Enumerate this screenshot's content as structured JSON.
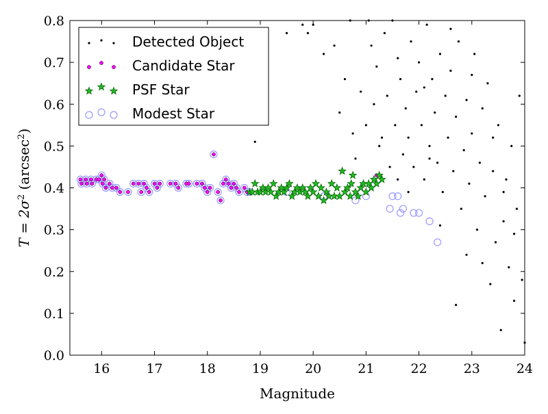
{
  "chart_data": {
    "type": "scatter",
    "xlabel": "Magnitude",
    "ylabel_parts": {
      "base": "T = 2σ",
      "exp": "2",
      "unit_pre": " (arcsec",
      "unit_exp": "2",
      "unit_post": ")"
    },
    "xlim": [
      15.4,
      24
    ],
    "ylim": [
      0.0,
      0.8
    ],
    "xticks": [
      16,
      17,
      18,
      19,
      20,
      21,
      22,
      23,
      24
    ],
    "yticks": [
      "0.0",
      "0.1",
      "0.2",
      "0.3",
      "0.4",
      "0.5",
      "0.6",
      "0.7",
      "0.8"
    ],
    "grid": false,
    "legend_position": "top-left",
    "colors": {
      "detected": "#000000",
      "candidate_face": "#ff00ff",
      "psf_face": "#22bb22",
      "psf_edge": "#006400",
      "modest_edge": "#9999ff"
    },
    "legend": [
      {
        "key": "detected",
        "label": "Detected Object",
        "marker": "dot"
      },
      {
        "key": "candidate",
        "label": "Candidate Star",
        "marker": "small-circle"
      },
      {
        "key": "psf",
        "label": "PSF Star",
        "marker": "star"
      },
      {
        "key": "modest",
        "label": "Modest Star",
        "marker": "open-circle"
      }
    ],
    "series": [
      {
        "name": "Candidate Star",
        "points": [
          [
            15.6,
            0.42
          ],
          [
            15.62,
            0.41
          ],
          [
            15.7,
            0.42
          ],
          [
            15.72,
            0.41
          ],
          [
            15.8,
            0.42
          ],
          [
            15.82,
            0.41
          ],
          [
            15.9,
            0.42
          ],
          [
            15.95,
            0.42
          ],
          [
            16.0,
            0.43
          ],
          [
            16.02,
            0.41
          ],
          [
            16.05,
            0.42
          ],
          [
            16.08,
            0.4
          ],
          [
            16.15,
            0.41
          ],
          [
            16.2,
            0.4
          ],
          [
            16.28,
            0.4
          ],
          [
            16.35,
            0.39
          ],
          [
            16.5,
            0.39
          ],
          [
            16.6,
            0.41
          ],
          [
            16.7,
            0.41
          ],
          [
            16.75,
            0.39
          ],
          [
            16.8,
            0.41
          ],
          [
            16.85,
            0.4
          ],
          [
            16.9,
            0.39
          ],
          [
            17.0,
            0.41
          ],
          [
            17.05,
            0.4
          ],
          [
            17.1,
            0.41
          ],
          [
            17.3,
            0.41
          ],
          [
            17.4,
            0.41
          ],
          [
            17.45,
            0.4
          ],
          [
            17.6,
            0.41
          ],
          [
            17.65,
            0.41
          ],
          [
            17.8,
            0.41
          ],
          [
            17.9,
            0.41
          ],
          [
            17.95,
            0.4
          ],
          [
            18.0,
            0.39
          ],
          [
            18.05,
            0.4
          ],
          [
            18.12,
            0.48
          ],
          [
            18.2,
            0.39
          ],
          [
            18.25,
            0.37
          ],
          [
            18.3,
            0.41
          ],
          [
            18.35,
            0.42
          ],
          [
            18.4,
            0.41
          ],
          [
            18.45,
            0.4
          ],
          [
            18.5,
            0.41
          ],
          [
            18.55,
            0.4
          ],
          [
            18.6,
            0.39
          ],
          [
            18.7,
            0.4
          ],
          [
            18.75,
            0.39
          ],
          [
            18.8,
            0.39
          ],
          [
            21.2,
            0.43
          ]
        ]
      },
      {
        "name": "PSF Star",
        "points": [
          [
            18.8,
            0.39
          ],
          [
            18.85,
            0.39
          ],
          [
            18.9,
            0.41
          ],
          [
            18.95,
            0.39
          ],
          [
            19.0,
            0.39
          ],
          [
            19.05,
            0.4
          ],
          [
            19.1,
            0.39
          ],
          [
            19.15,
            0.4
          ],
          [
            19.2,
            0.39
          ],
          [
            19.25,
            0.41
          ],
          [
            19.3,
            0.38
          ],
          [
            19.35,
            0.39
          ],
          [
            19.4,
            0.4
          ],
          [
            19.45,
            0.39
          ],
          [
            19.5,
            0.4
          ],
          [
            19.55,
            0.41
          ],
          [
            19.6,
            0.38
          ],
          [
            19.65,
            0.39
          ],
          [
            19.7,
            0.4
          ],
          [
            19.75,
            0.39
          ],
          [
            19.8,
            0.4
          ],
          [
            19.85,
            0.39
          ],
          [
            19.9,
            0.38
          ],
          [
            19.95,
            0.4
          ],
          [
            20.0,
            0.39
          ],
          [
            20.05,
            0.41
          ],
          [
            20.1,
            0.38
          ],
          [
            20.15,
            0.4
          ],
          [
            20.2,
            0.37
          ],
          [
            20.25,
            0.39
          ],
          [
            20.3,
            0.38
          ],
          [
            20.35,
            0.41
          ],
          [
            20.4,
            0.38
          ],
          [
            20.45,
            0.4
          ],
          [
            20.5,
            0.38
          ],
          [
            20.55,
            0.44
          ],
          [
            20.6,
            0.39
          ],
          [
            20.65,
            0.4
          ],
          [
            20.7,
            0.38
          ],
          [
            20.72,
            0.41
          ],
          [
            20.75,
            0.43
          ],
          [
            20.8,
            0.39
          ],
          [
            20.85,
            0.38
          ],
          [
            20.9,
            0.4
          ],
          [
            20.95,
            0.41
          ],
          [
            21.0,
            0.39
          ],
          [
            21.05,
            0.41
          ],
          [
            21.1,
            0.4
          ],
          [
            21.15,
            0.42
          ],
          [
            21.2,
            0.41
          ],
          [
            21.25,
            0.43
          ],
          [
            21.3,
            0.42
          ]
        ]
      },
      {
        "name": "Modest Star",
        "points": [
          [
            15.6,
            0.42
          ],
          [
            15.62,
            0.41
          ],
          [
            15.7,
            0.42
          ],
          [
            15.72,
            0.41
          ],
          [
            15.8,
            0.42
          ],
          [
            15.82,
            0.41
          ],
          [
            15.9,
            0.42
          ],
          [
            15.95,
            0.42
          ],
          [
            16.0,
            0.43
          ],
          [
            16.02,
            0.41
          ],
          [
            16.05,
            0.42
          ],
          [
            16.08,
            0.4
          ],
          [
            16.15,
            0.41
          ],
          [
            16.2,
            0.4
          ],
          [
            16.28,
            0.4
          ],
          [
            16.35,
            0.39
          ],
          [
            16.5,
            0.39
          ],
          [
            16.6,
            0.41
          ],
          [
            16.7,
            0.41
          ],
          [
            16.75,
            0.39
          ],
          [
            16.8,
            0.41
          ],
          [
            16.85,
            0.4
          ],
          [
            16.9,
            0.39
          ],
          [
            17.0,
            0.41
          ],
          [
            17.05,
            0.4
          ],
          [
            17.1,
            0.41
          ],
          [
            17.3,
            0.41
          ],
          [
            17.4,
            0.41
          ],
          [
            17.45,
            0.4
          ],
          [
            17.6,
            0.41
          ],
          [
            17.65,
            0.41
          ],
          [
            17.8,
            0.41
          ],
          [
            17.9,
            0.41
          ],
          [
            17.95,
            0.4
          ],
          [
            18.0,
            0.39
          ],
          [
            18.05,
            0.4
          ],
          [
            18.12,
            0.48
          ],
          [
            18.2,
            0.39
          ],
          [
            18.25,
            0.37
          ],
          [
            18.3,
            0.41
          ],
          [
            18.35,
            0.42
          ],
          [
            18.4,
            0.41
          ],
          [
            18.45,
            0.4
          ],
          [
            18.5,
            0.41
          ],
          [
            18.55,
            0.4
          ],
          [
            18.6,
            0.39
          ],
          [
            18.7,
            0.4
          ],
          [
            18.75,
            0.39
          ],
          [
            18.8,
            0.39
          ],
          [
            19.5,
            0.39
          ],
          [
            20.2,
            0.38
          ],
          [
            20.8,
            0.37
          ],
          [
            21.0,
            0.38
          ],
          [
            21.45,
            0.35
          ],
          [
            21.5,
            0.38
          ],
          [
            21.6,
            0.38
          ],
          [
            21.65,
            0.34
          ],
          [
            21.7,
            0.35
          ],
          [
            21.9,
            0.34
          ],
          [
            22.0,
            0.34
          ],
          [
            22.2,
            0.32
          ],
          [
            22.35,
            0.27
          ]
        ]
      },
      {
        "name": "Detected Object",
        "points": [
          [
            18.9,
            0.51
          ],
          [
            19.1,
            0.78
          ],
          [
            19.5,
            0.77
          ],
          [
            19.8,
            0.79
          ],
          [
            19.9,
            0.77
          ],
          [
            20.0,
            0.79
          ],
          [
            20.2,
            0.72
          ],
          [
            20.4,
            0.74
          ],
          [
            20.5,
            0.58
          ],
          [
            20.6,
            0.66
          ],
          [
            20.7,
            0.8
          ],
          [
            20.75,
            0.53
          ],
          [
            20.8,
            0.47
          ],
          [
            20.9,
            0.63
          ],
          [
            21.0,
            0.55
          ],
          [
            21.05,
            0.8
          ],
          [
            21.1,
            0.74
          ],
          [
            21.15,
            0.6
          ],
          [
            21.2,
            0.69
          ],
          [
            21.25,
            0.5
          ],
          [
            21.3,
            0.52
          ],
          [
            21.35,
            0.77
          ],
          [
            21.4,
            0.62
          ],
          [
            21.45,
            0.45
          ],
          [
            21.5,
            0.8
          ],
          [
            21.55,
            0.55
          ],
          [
            21.6,
            0.71
          ],
          [
            21.65,
            0.66
          ],
          [
            21.7,
            0.48
          ],
          [
            21.75,
            0.59
          ],
          [
            21.8,
            0.52
          ],
          [
            21.85,
            0.75
          ],
          [
            21.9,
            0.45
          ],
          [
            21.95,
            0.63
          ],
          [
            22.0,
            0.7
          ],
          [
            22.05,
            0.55
          ],
          [
            22.1,
            0.42
          ],
          [
            22.15,
            0.79
          ],
          [
            22.2,
            0.5
          ],
          [
            22.25,
            0.66
          ],
          [
            22.3,
            0.58
          ],
          [
            22.35,
            0.46
          ],
          [
            22.4,
            0.72
          ],
          [
            22.45,
            0.39
          ],
          [
            22.5,
            0.62
          ],
          [
            22.55,
            0.52
          ],
          [
            22.6,
            0.68
          ],
          [
            22.65,
            0.44
          ],
          [
            22.7,
            0.57
          ],
          [
            22.75,
            0.75
          ],
          [
            22.8,
            0.35
          ],
          [
            22.85,
            0.49
          ],
          [
            22.9,
            0.61
          ],
          [
            22.95,
            0.41
          ],
          [
            23.0,
            0.53
          ],
          [
            23.05,
            0.72
          ],
          [
            23.1,
            0.3
          ],
          [
            23.15,
            0.46
          ],
          [
            23.2,
            0.59
          ],
          [
            23.25,
            0.38
          ],
          [
            23.3,
            0.65
          ],
          [
            23.35,
            0.17
          ],
          [
            23.4,
            0.44
          ],
          [
            23.45,
            0.27
          ],
          [
            23.5,
            0.55
          ],
          [
            23.55,
            0.06
          ],
          [
            23.6,
            0.32
          ],
          [
            23.65,
            0.42
          ],
          [
            23.7,
            0.21
          ],
          [
            23.75,
            0.5
          ],
          [
            23.8,
            0.13
          ],
          [
            23.85,
            0.35
          ],
          [
            23.9,
            0.62
          ],
          [
            23.95,
            0.18
          ],
          [
            24.0,
            0.03
          ],
          [
            22.7,
            0.12
          ],
          [
            23.2,
            0.22
          ],
          [
            23.8,
            0.29
          ],
          [
            22.6,
            0.78
          ],
          [
            23.0,
            0.67
          ],
          [
            22.4,
            0.31
          ],
          [
            21.8,
            0.39
          ],
          [
            22.2,
            0.47
          ],
          [
            23.4,
            0.52
          ],
          [
            22.9,
            0.24
          ],
          [
            23.6,
            0.39
          ],
          [
            22.1,
            0.64
          ],
          [
            21.6,
            0.42
          ]
        ]
      }
    ]
  }
}
